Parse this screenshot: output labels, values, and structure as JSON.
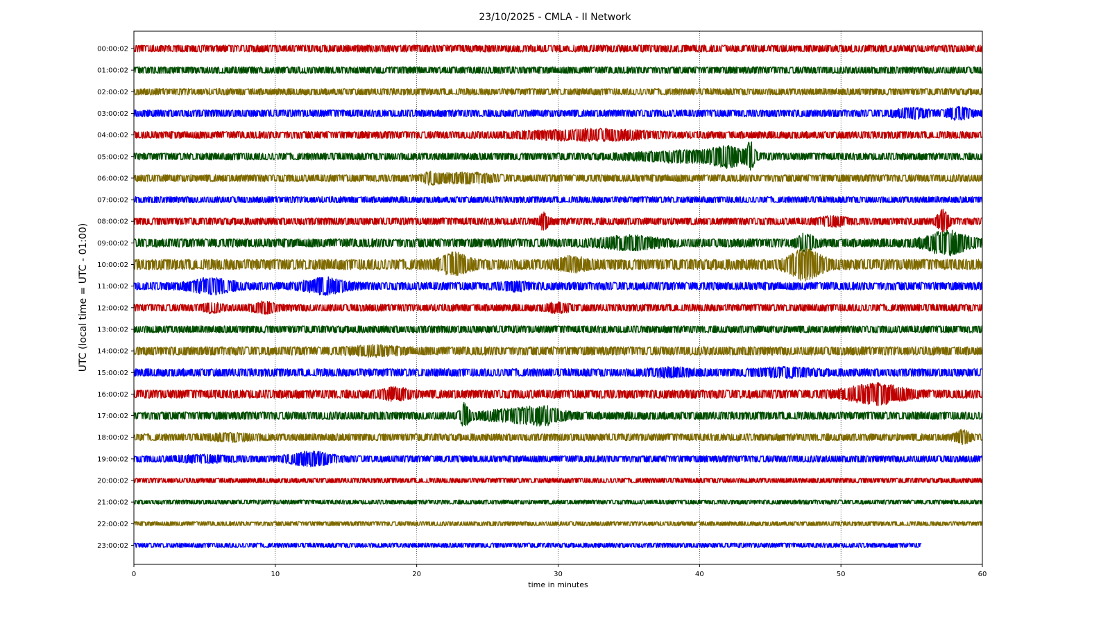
{
  "chart_data": {
    "type": "line",
    "title": "23/10/2025 - CMLA - II Network",
    "xlabel": "time in minutes",
    "ylabel": "UTC (local time = UTC - 01:00)",
    "xlim": [
      0,
      60
    ],
    "x_ticks": [
      "0",
      "10",
      "20",
      "30",
      "40",
      "50",
      "60"
    ],
    "grid": "vertical dotted lines at x ticks",
    "colors": [
      "#c00000",
      "#004d00",
      "#7f6a00",
      "#0000ff"
    ],
    "series": [
      {
        "name": "00:00:02",
        "end_minute": 60
      },
      {
        "name": "01:00:02",
        "end_minute": 60
      },
      {
        "name": "02:00:02",
        "end_minute": 60
      },
      {
        "name": "03:00:02",
        "end_minute": 60
      },
      {
        "name": "04:00:02",
        "end_minute": 60
      },
      {
        "name": "05:00:02",
        "end_minute": 60
      },
      {
        "name": "06:00:02",
        "end_minute": 60
      },
      {
        "name": "07:00:02",
        "end_minute": 60
      },
      {
        "name": "08:00:02",
        "end_minute": 60
      },
      {
        "name": "09:00:02",
        "end_minute": 60
      },
      {
        "name": "10:00:02",
        "end_minute": 60
      },
      {
        "name": "11:00:02",
        "end_minute": 60
      },
      {
        "name": "12:00:02",
        "end_minute": 60
      },
      {
        "name": "13:00:02",
        "end_minute": 60
      },
      {
        "name": "14:00:02",
        "end_minute": 60
      },
      {
        "name": "15:00:02",
        "end_minute": 60
      },
      {
        "name": "16:00:02",
        "end_minute": 60
      },
      {
        "name": "17:00:02",
        "end_minute": 60
      },
      {
        "name": "18:00:02",
        "end_minute": 60
      },
      {
        "name": "19:00:02",
        "end_minute": 60
      },
      {
        "name": "20:00:02",
        "end_minute": 60
      },
      {
        "name": "21:00:02",
        "end_minute": 60
      },
      {
        "name": "22:00:02",
        "end_minute": 60
      },
      {
        "name": "23:00:02",
        "end_minute": 55.7
      }
    ]
  }
}
